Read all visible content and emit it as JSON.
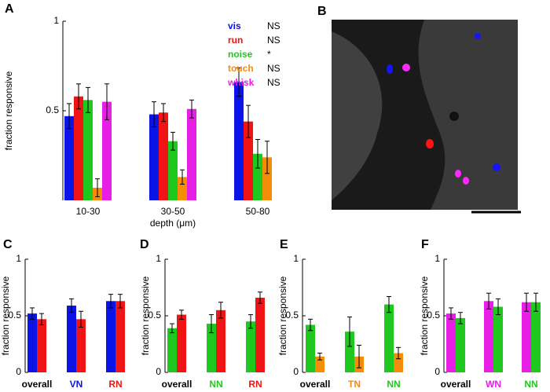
{
  "chart_data": [
    {
      "type": "bar",
      "panel": "A",
      "ylabel": "fraction responsive",
      "xlabel": "depth (μm)",
      "categories": [
        "10-30",
        "30-50",
        "50-80"
      ],
      "ylim": [
        0,
        1
      ],
      "yticks": [
        0.5,
        1
      ],
      "legend": "upper right",
      "series": [
        {
          "name": "vis",
          "color": "#0a14e6",
          "annotation": "NS",
          "values": [
            0.47,
            0.48,
            0.66
          ],
          "errors": [
            0.07,
            0.07,
            0.08
          ]
        },
        {
          "name": "run",
          "color": "#f01414",
          "annotation": "NS",
          "values": [
            0.58,
            0.49,
            0.44
          ],
          "errors": [
            0.07,
            0.05,
            0.09
          ]
        },
        {
          "name": "noise",
          "color": "#1ec81e",
          "annotation": "*",
          "values": [
            0.56,
            0.33,
            0.26
          ],
          "errors": [
            0.07,
            0.05,
            0.08
          ]
        },
        {
          "name": "touch",
          "color": "#f58c0a",
          "annotation": "NS",
          "values": [
            0.07,
            0.13,
            0.24
          ],
          "errors": [
            0.05,
            0.04,
            0.09
          ]
        },
        {
          "name": "whisk",
          "color": "#e61ee6",
          "annotation": "NS",
          "values": [
            0.55,
            0.51,
            null
          ],
          "errors": [
            0.1,
            0.05,
            null
          ]
        }
      ]
    },
    {
      "type": "bar",
      "panel": "C",
      "ylabel": "fraction responsive",
      "categories": [
        "overall",
        "VN",
        "RN"
      ],
      "category_colors": [
        "#000000",
        "#0a14e6",
        "#f01414"
      ],
      "ylim": [
        0,
        1
      ],
      "yticks": [
        0,
        0.5,
        1
      ],
      "series": [
        {
          "color": "#0a14e6",
          "values": [
            0.52,
            0.59,
            0.63
          ],
          "errors": [
            0.05,
            0.06,
            0.06
          ]
        },
        {
          "color": "#f01414",
          "values": [
            0.47,
            0.47,
            0.63
          ],
          "errors": [
            0.05,
            0.07,
            0.06
          ]
        }
      ]
    },
    {
      "type": "bar",
      "panel": "D",
      "ylabel": "fraction responsive",
      "categories": [
        "overall",
        "NN",
        "RN"
      ],
      "category_colors": [
        "#000000",
        "#1ec81e",
        "#f01414"
      ],
      "ylim": [
        0,
        1
      ],
      "yticks": [
        0,
        0.5,
        1
      ],
      "series": [
        {
          "color": "#1ec81e",
          "values": [
            0.39,
            0.43,
            0.45
          ],
          "errors": [
            0.04,
            0.08,
            0.06
          ]
        },
        {
          "color": "#f01414",
          "values": [
            0.51,
            0.55,
            0.66
          ],
          "errors": [
            0.04,
            0.07,
            0.05
          ]
        }
      ]
    },
    {
      "type": "bar",
      "panel": "E",
      "ylabel": "fraction responsive",
      "categories": [
        "overall",
        "TN",
        "NN"
      ],
      "category_colors": [
        "#000000",
        "#f58c0a",
        "#1ec81e"
      ],
      "ylim": [
        0,
        1
      ],
      "yticks": [
        0,
        0.5,
        1
      ],
      "series": [
        {
          "color": "#1ec81e",
          "values": [
            0.42,
            0.36,
            0.6
          ],
          "errors": [
            0.05,
            0.13,
            0.07
          ]
        },
        {
          "color": "#f58c0a",
          "values": [
            0.14,
            0.14,
            0.17
          ],
          "errors": [
            0.03,
            0.1,
            0.05
          ]
        }
      ]
    },
    {
      "type": "bar",
      "panel": "F",
      "ylabel": "fraction responsive",
      "categories": [
        "overall",
        "WN",
        "NN"
      ],
      "category_colors": [
        "#000000",
        "#e61ee6",
        "#1ec81e"
      ],
      "ylim": [
        0,
        1
      ],
      "yticks": [
        0,
        0.5,
        1
      ],
      "series": [
        {
          "color": "#e61ee6",
          "values": [
            0.52,
            0.63,
            0.62
          ],
          "errors": [
            0.05,
            0.07,
            0.08
          ]
        },
        {
          "color": "#1ec81e",
          "values": [
            0.48,
            0.58,
            0.62
          ],
          "errors": [
            0.05,
            0.07,
            0.08
          ]
        }
      ]
    }
  ],
  "image_panel": {
    "label": "B"
  }
}
